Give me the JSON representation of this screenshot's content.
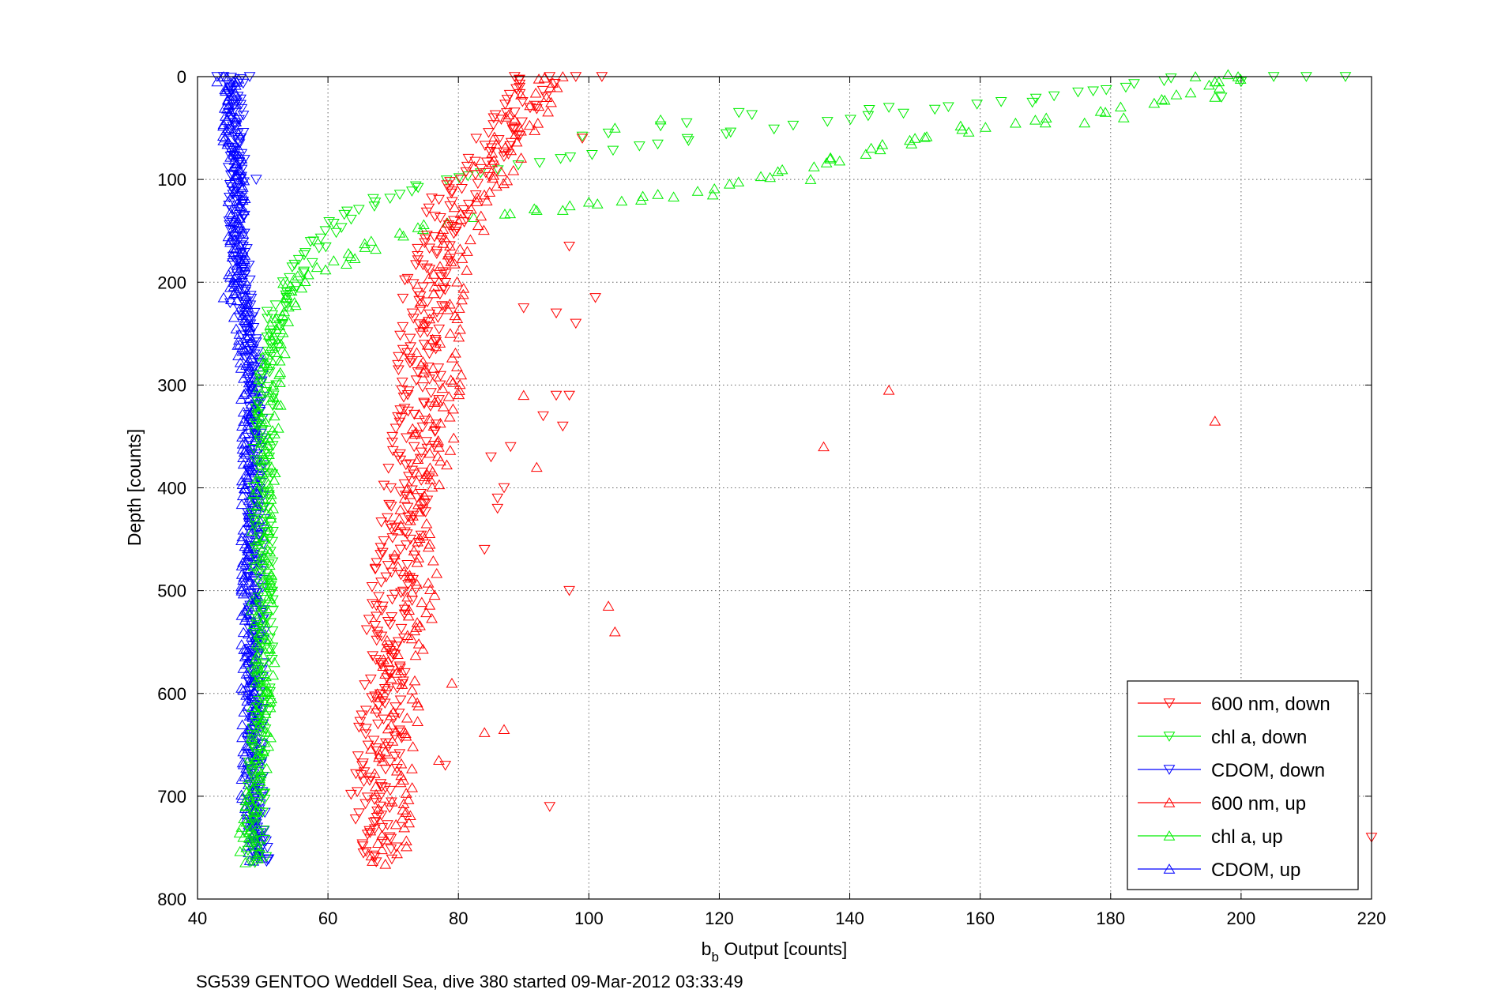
{
  "chart_data": {
    "type": "scatter",
    "xlabel_main": "b",
    "xlabel_sub": "b",
    "xlabel_rest": " Output [counts]",
    "ylabel": "Depth [counts]",
    "caption": "SG539 GENTOO Weddell Sea, dive 380 started 09-Mar-2012 03:33:49",
    "xlim": [
      40,
      220
    ],
    "ylim": [
      0,
      800
    ],
    "y_reversed": true,
    "xticks": [
      "40",
      "60",
      "80",
      "100",
      "120",
      "140",
      "160",
      "180",
      "200",
      "220"
    ],
    "yticks": [
      "0",
      "100",
      "200",
      "300",
      "400",
      "500",
      "600",
      "700",
      "800"
    ],
    "grid": true,
    "legend_position": "bottom-right",
    "series": [
      {
        "name": "600 nm, down",
        "color": "#ff0000",
        "marker": "triangle-down",
        "profile": [
          [
            0,
            92
          ],
          [
            20,
            90
          ],
          [
            50,
            87
          ],
          [
            80,
            84
          ],
          [
            110,
            80
          ],
          [
            150,
            77
          ],
          [
            200,
            75
          ],
          [
            250,
            74
          ],
          [
            300,
            74
          ],
          [
            350,
            73
          ],
          [
            400,
            72
          ],
          [
            450,
            71
          ],
          [
            500,
            70
          ],
          [
            550,
            69
          ],
          [
            600,
            68
          ],
          [
            650,
            68
          ],
          [
            700,
            67
          ],
          [
            740,
            67
          ],
          [
            765,
            68
          ]
        ],
        "spread": 3.5,
        "stride": 2,
        "outliers": [
          [
            94,
            0
          ],
          [
            98,
            0
          ],
          [
            102,
            0
          ],
          [
            99,
            60
          ],
          [
            97,
            165
          ],
          [
            95,
            230
          ],
          [
            98,
            240
          ],
          [
            101,
            215
          ],
          [
            90,
            225
          ],
          [
            97,
            310
          ],
          [
            95,
            310
          ],
          [
            93,
            330
          ],
          [
            96,
            340
          ],
          [
            88,
            360
          ],
          [
            85,
            370
          ],
          [
            87,
            400
          ],
          [
            86,
            410
          ],
          [
            86,
            420
          ],
          [
            84,
            460
          ],
          [
            97,
            500
          ],
          [
            94,
            710
          ],
          [
            220,
            740
          ],
          [
            78,
            670
          ]
        ]
      },
      {
        "name": "chl a, down",
        "color": "#00ee00",
        "marker": "triangle-down",
        "profile": [
          [
            0,
            192
          ],
          [
            10,
            182
          ],
          [
            30,
            155
          ],
          [
            50,
            128
          ],
          [
            70,
            105
          ],
          [
            90,
            85
          ],
          [
            110,
            72
          ],
          [
            130,
            64
          ],
          [
            150,
            60
          ],
          [
            175,
            57
          ],
          [
            200,
            54
          ],
          [
            230,
            52
          ],
          [
            260,
            51
          ],
          [
            300,
            51
          ],
          [
            350,
            50
          ],
          [
            400,
            50
          ],
          [
            500,
            50
          ],
          [
            600,
            50
          ],
          [
            700,
            49
          ],
          [
            740,
            49
          ],
          [
            765,
            49
          ]
        ],
        "spread": 1.6,
        "stride": 3,
        "outliers": [
          [
            216,
            0
          ],
          [
            210,
            0
          ],
          [
            205,
            0
          ],
          [
            200,
            5
          ],
          [
            197,
            20
          ],
          [
            175,
            15
          ],
          [
            168,
            25
          ],
          [
            146,
            30
          ],
          [
            143,
            32
          ],
          [
            123,
            35
          ],
          [
            125,
            37
          ],
          [
            115,
            45
          ],
          [
            111,
            48
          ],
          [
            103,
            55
          ],
          [
            99,
            58
          ],
          [
            50,
            595
          ]
        ]
      },
      {
        "name": "CDOM, down",
        "color": "#0000ff",
        "marker": "triangle-down",
        "profile": [
          [
            0,
            46
          ],
          [
            50,
            46
          ],
          [
            100,
            46
          ],
          [
            150,
            46
          ],
          [
            200,
            47
          ],
          [
            250,
            48
          ],
          [
            300,
            49
          ],
          [
            350,
            49
          ],
          [
            400,
            49
          ],
          [
            450,
            49
          ],
          [
            500,
            49
          ],
          [
            550,
            49
          ],
          [
            600,
            49
          ],
          [
            650,
            49
          ],
          [
            700,
            49
          ],
          [
            765,
            50
          ]
        ],
        "spread": 1.3,
        "stride": 2,
        "outliers": [
          [
            44,
            0
          ],
          [
            43,
            0
          ],
          [
            48,
            0
          ],
          [
            49,
            100
          ],
          [
            46,
            180
          ],
          [
            45,
            220
          ]
        ]
      },
      {
        "name": "600 nm, up",
        "color": "#ff0000",
        "marker": "triangle-up",
        "profile": [
          [
            0,
            93
          ],
          [
            15,
            92
          ],
          [
            40,
            90
          ],
          [
            70,
            87
          ],
          [
            100,
            85
          ],
          [
            130,
            82
          ],
          [
            160,
            80
          ],
          [
            200,
            78
          ],
          [
            250,
            77
          ],
          [
            300,
            77
          ],
          [
            350,
            76
          ],
          [
            400,
            75
          ],
          [
            450,
            74
          ],
          [
            500,
            73
          ],
          [
            550,
            72
          ],
          [
            600,
            71
          ],
          [
            650,
            70
          ],
          [
            700,
            70
          ],
          [
            740,
            69
          ],
          [
            765,
            70
          ]
        ],
        "spread": 3.5,
        "stride": 3,
        "outliers": [
          [
            103,
            515
          ],
          [
            104,
            540
          ],
          [
            146,
            305
          ],
          [
            136,
            360
          ],
          [
            196,
            335
          ],
          [
            92,
            380
          ],
          [
            87,
            635
          ],
          [
            84,
            638
          ],
          [
            96,
            0
          ],
          [
            90,
            310
          ],
          [
            79,
            590
          ],
          [
            77,
            665
          ]
        ]
      },
      {
        "name": "chl a, up",
        "color": "#00ee00",
        "marker": "triangle-up",
        "profile": [
          [
            0,
            200
          ],
          [
            10,
            196
          ],
          [
            20,
            190
          ],
          [
            35,
            178
          ],
          [
            50,
            160
          ],
          [
            65,
            148
          ],
          [
            80,
            138
          ],
          [
            95,
            128
          ],
          [
            110,
            118
          ],
          [
            125,
            98
          ],
          [
            140,
            78
          ],
          [
            160,
            68
          ],
          [
            180,
            62
          ],
          [
            200,
            55
          ],
          [
            230,
            53
          ],
          [
            260,
            52
          ],
          [
            300,
            51
          ],
          [
            350,
            51
          ],
          [
            400,
            50
          ],
          [
            500,
            50
          ],
          [
            600,
            50
          ],
          [
            700,
            49
          ],
          [
            740,
            48
          ],
          [
            765,
            48
          ]
        ],
        "spread": 1.8,
        "stride": 3,
        "outliers": [
          [
            193,
            0
          ],
          [
            196,
            5
          ],
          [
            196,
            20
          ],
          [
            198,
            -2
          ],
          [
            182,
            40
          ],
          [
            176,
            45
          ],
          [
            170,
            45
          ],
          [
            157,
            48
          ],
          [
            150,
            60
          ],
          [
            145,
            66
          ],
          [
            137,
            80
          ],
          [
            134,
            100
          ],
          [
            111,
            42
          ],
          [
            104,
            50
          ],
          [
            100,
            122
          ],
          [
            96,
            130
          ],
          [
            92,
            130
          ],
          [
            119,
            115
          ],
          [
            113,
            117
          ],
          [
            108,
            120
          ],
          [
            47,
            740
          ],
          [
            48,
            735
          ]
        ]
      },
      {
        "name": "CDOM, up",
        "color": "#0000ff",
        "marker": "triangle-up",
        "profile": [
          [
            0,
            45
          ],
          [
            50,
            45
          ],
          [
            100,
            46
          ],
          [
            150,
            46
          ],
          [
            200,
            46
          ],
          [
            250,
            47
          ],
          [
            300,
            48
          ],
          [
            350,
            48
          ],
          [
            400,
            48
          ],
          [
            450,
            48
          ],
          [
            500,
            48
          ],
          [
            550,
            48
          ],
          [
            600,
            48
          ],
          [
            650,
            48
          ],
          [
            700,
            48
          ],
          [
            765,
            49
          ]
        ],
        "spread": 1.3,
        "stride": 2,
        "outliers": [
          [
            44,
            0
          ],
          [
            43,
            5
          ],
          [
            45,
            205
          ],
          [
            45,
            195
          ],
          [
            44,
            215
          ]
        ]
      }
    ]
  }
}
